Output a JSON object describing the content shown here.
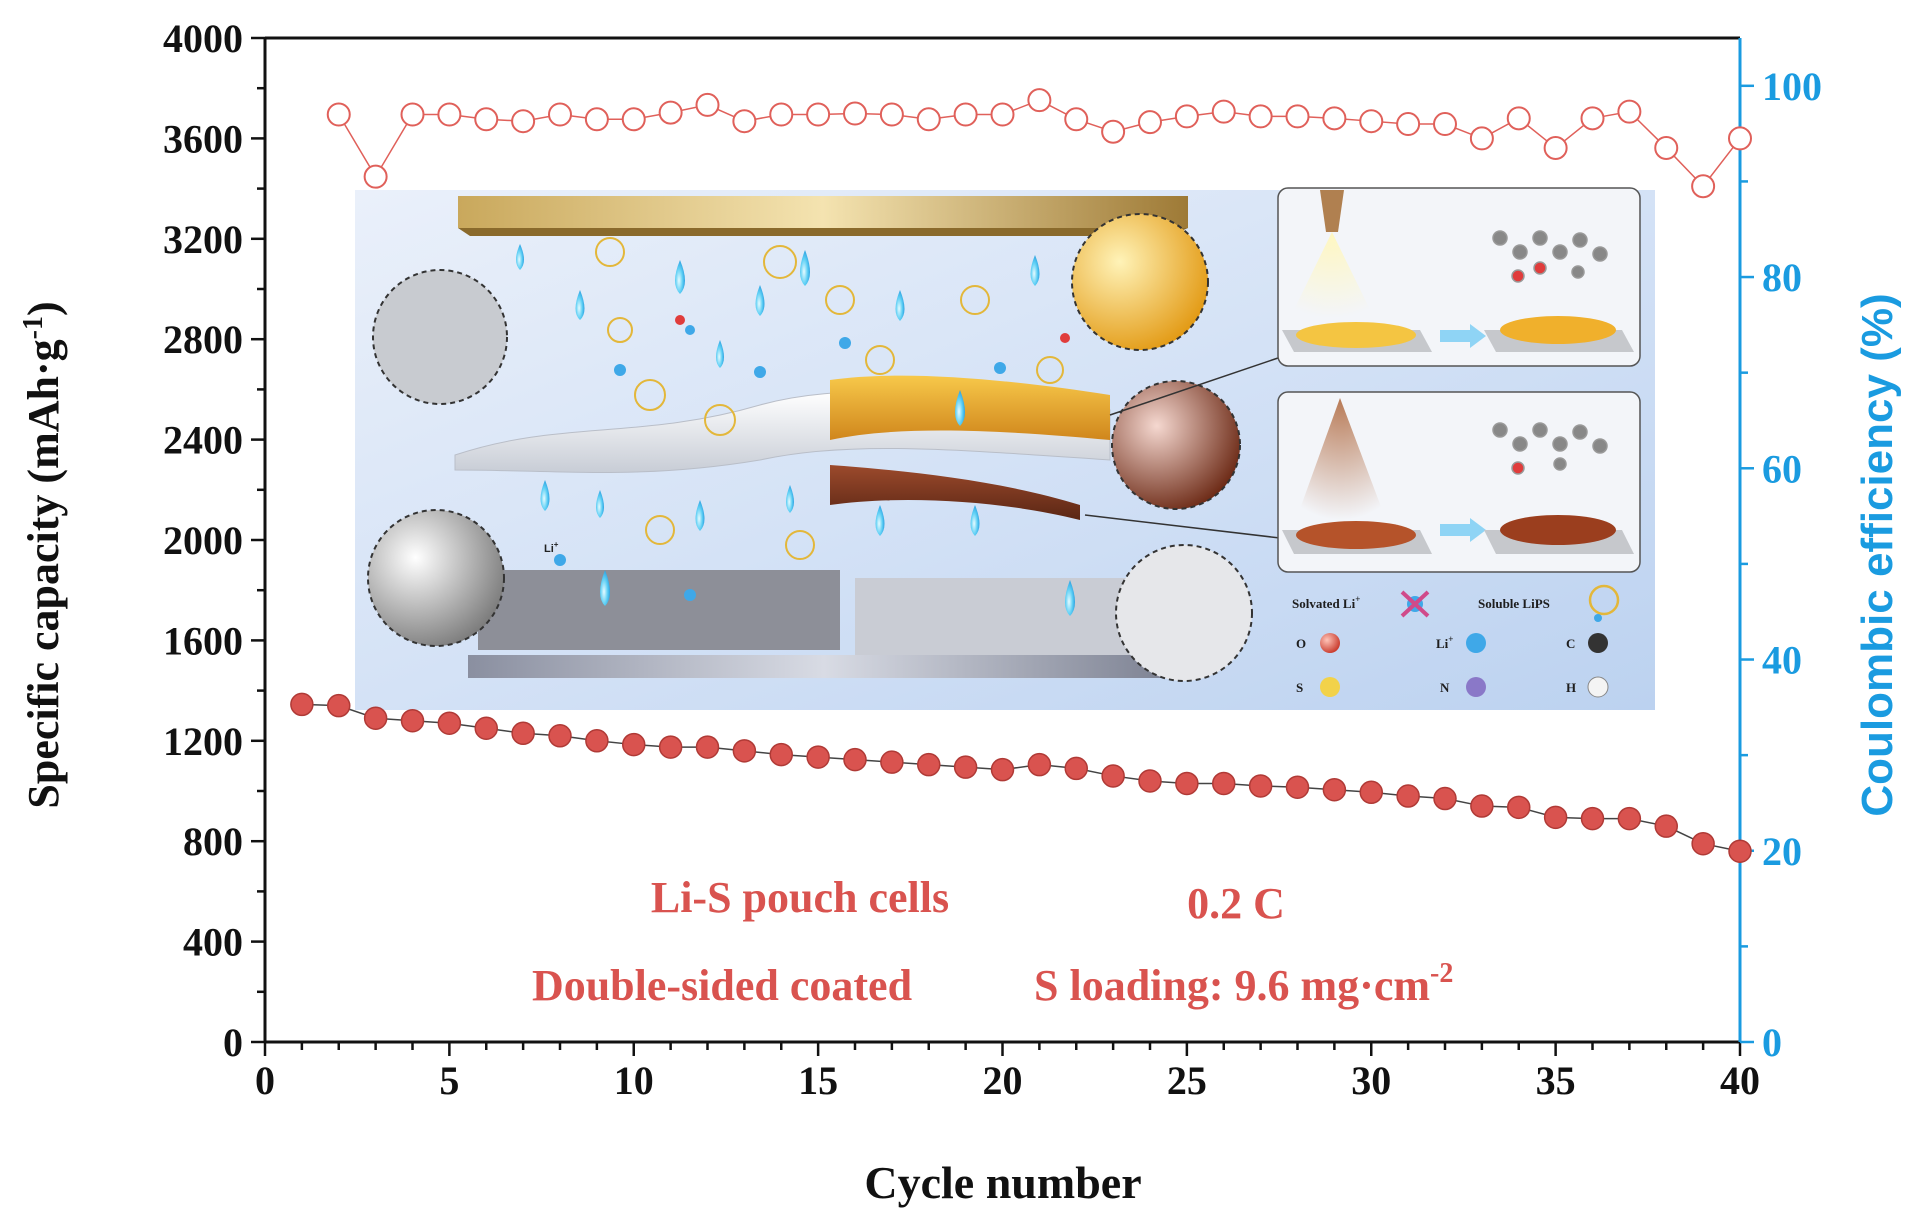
{
  "chart_data": {
    "type": "scatter",
    "xlabel": "Cycle number",
    "ylabel_left": "Specific capacity (mAh·g",
    "ylabel_left_sup": "-1",
    "ylabel_left_end": ")",
    "ylabel_right": "Coulombic efficiency (%)",
    "xlim": [
      0,
      40
    ],
    "ylim_left": [
      0,
      4000
    ],
    "ylim_right": [
      0,
      105
    ],
    "x_ticks": [
      "0",
      "5",
      "10",
      "15",
      "20",
      "25",
      "30",
      "35",
      "40"
    ],
    "y_left_ticks": [
      "0",
      "400",
      "800",
      "1200",
      "1600",
      "2000",
      "2400",
      "2800",
      "3200",
      "3600",
      "4000"
    ],
    "y_right_ticks": [
      "0",
      "20",
      "40",
      "60",
      "80",
      "100"
    ],
    "colors": {
      "capacity": "#d9534f",
      "efficiency": "#e0605a",
      "right_axis": "#1a9be0",
      "text_red": "#d9534f"
    },
    "series": [
      {
        "axis": "left",
        "marker": "filled-circle",
        "x": [
          1,
          2,
          3,
          4,
          5,
          6,
          7,
          8,
          9,
          10,
          11,
          12,
          13,
          14,
          15,
          16,
          17,
          18,
          19,
          20,
          21,
          22,
          23,
          24,
          25,
          26,
          27,
          28,
          29,
          30,
          31,
          32,
          33,
          34,
          35,
          36,
          37,
          38,
          39,
          40
        ],
        "values": [
          1345,
          1340,
          1290,
          1280,
          1270,
          1250,
          1230,
          1220,
          1200,
          1185,
          1175,
          1175,
          1160,
          1145,
          1135,
          1125,
          1115,
          1105,
          1095,
          1085,
          1105,
          1090,
          1060,
          1040,
          1030,
          1030,
          1020,
          1015,
          1005,
          995,
          980,
          970,
          940,
          935,
          895,
          890,
          890,
          860,
          790,
          760
        ]
      },
      {
        "axis": "right",
        "marker": "open-circle",
        "x": [
          2,
          3,
          4,
          5,
          6,
          7,
          8,
          9,
          10,
          11,
          12,
          13,
          14,
          15,
          16,
          17,
          18,
          19,
          20,
          21,
          22,
          23,
          24,
          25,
          26,
          27,
          28,
          29,
          30,
          31,
          32,
          33,
          34,
          35,
          36,
          37,
          38,
          39,
          40
        ],
        "values": [
          97,
          90.5,
          97,
          97,
          96.5,
          96.3,
          97,
          96.5,
          96.5,
          97.2,
          98,
          96.3,
          97,
          97,
          97.1,
          97,
          96.5,
          97,
          97,
          98.5,
          96.5,
          95.2,
          96.2,
          96.8,
          97.3,
          96.8,
          96.8,
          96.6,
          96.3,
          96,
          96,
          94.5,
          96.6,
          93.5,
          96.6,
          97.3,
          93.5,
          89.5,
          94.5
        ]
      }
    ],
    "annotations": {
      "line1": "Li-S pouch cells",
      "rate": "0.2 C",
      "line2": "Double-sided coated",
      "loading": "S loading: 9.6 mg·cm",
      "loading_sup": "-2"
    },
    "inset_legend": {
      "solvated": "Solvated Li",
      "solvated_sup": "+",
      "soluble": "Soluble LiPS",
      "atoms": [
        {
          "label": "O",
          "color": "#e03c3c"
        },
        {
          "label": "Li",
          "sup": "+",
          "color": "#3fa8e8"
        },
        {
          "label": "C",
          "color": "#333333"
        },
        {
          "label": "S",
          "color": "#f2d24a"
        },
        {
          "label": "N",
          "color": "#8a78c8"
        },
        {
          "label": "H",
          "color": "#f4f4f4"
        }
      ],
      "li_label": "Li",
      "li_sup": "+"
    }
  }
}
